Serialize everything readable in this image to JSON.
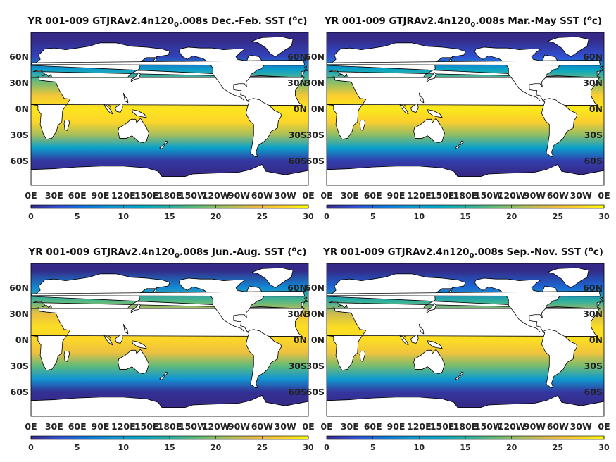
{
  "chart_data": [
    {
      "type": "heatmap",
      "title": {
        "prefix": "YR 001-009 GTJRAv2.4n120",
        "subscript": "0",
        "suffix": ".008s Dec.-Feb. SST (",
        "unit_sup": "o",
        "unit_after": "c)"
      },
      "season": "Dec.-Feb.",
      "x_ticks": [
        "0E",
        "30E",
        "60E",
        "90E",
        "120E",
        "150E",
        "180E",
        "150W",
        "120W",
        "90W",
        "60W",
        "30W",
        "0E"
      ],
      "y_ticks": [
        "60N",
        "30N",
        "0N",
        "30S",
        "60S"
      ],
      "colorbar": {
        "ticks": [
          "0",
          "5",
          "10",
          "15",
          "20",
          "25",
          "30"
        ],
        "range": [
          0,
          30
        ],
        "colormap": "parula"
      },
      "sst_by_latitude": [
        [
          80,
          -1
        ],
        [
          60,
          2
        ],
        [
          45,
          11
        ],
        [
          30,
          19
        ],
        [
          15,
          26
        ],
        [
          0,
          28.5
        ],
        [
          -15,
          27.5
        ],
        [
          -30,
          21
        ],
        [
          -45,
          11
        ],
        [
          -60,
          1
        ],
        [
          -75,
          -1
        ]
      ]
    },
    {
      "type": "heatmap",
      "title": {
        "prefix": "YR 001-009 GTJRAv2.4n120",
        "subscript": "0",
        "suffix": ".008s Mar.-May SST (",
        "unit_sup": "o",
        "unit_after": "c)"
      },
      "season": "Mar.-May",
      "x_ticks": [
        "0E",
        "30E",
        "60E",
        "90E",
        "120E",
        "150E",
        "180E",
        "150W",
        "120W",
        "90W",
        "60W",
        "30W",
        "0E"
      ],
      "y_ticks": [
        "60N",
        "30N",
        "0N",
        "30S",
        "60S"
      ],
      "colorbar": {
        "ticks": [
          "0",
          "5",
          "10",
          "15",
          "20",
          "25",
          "30"
        ],
        "range": [
          0,
          30
        ],
        "colormap": "parula"
      },
      "sst_by_latitude": [
        [
          80,
          -1
        ],
        [
          60,
          3
        ],
        [
          45,
          12
        ],
        [
          30,
          20
        ],
        [
          15,
          27
        ],
        [
          0,
          28.8
        ],
        [
          -15,
          27
        ],
        [
          -30,
          20
        ],
        [
          -45,
          11
        ],
        [
          -60,
          1.5
        ],
        [
          -75,
          -1
        ]
      ]
    },
    {
      "type": "heatmap",
      "title": {
        "prefix": "YR 001-009 GTJRAv2.4n120",
        "subscript": "0",
        "suffix": ".008s Jun.-Aug. SST (",
        "unit_sup": "o",
        "unit_after": "c)"
      },
      "season": "Jun.-Aug.",
      "x_ticks": [
        "0E",
        "30E",
        "60E",
        "90E",
        "120E",
        "150E",
        "180E",
        "150W",
        "120W",
        "90W",
        "60W",
        "30W",
        "0E"
      ],
      "y_ticks": [
        "60N",
        "30N",
        "0N",
        "30S",
        "60S"
      ],
      "colorbar": {
        "ticks": [
          "0",
          "5",
          "10",
          "15",
          "20",
          "25",
          "30"
        ],
        "range": [
          0,
          30
        ],
        "colormap": "parula"
      },
      "sst_by_latitude": [
        [
          80,
          0
        ],
        [
          60,
          8
        ],
        [
          45,
          17
        ],
        [
          30,
          25
        ],
        [
          15,
          28
        ],
        [
          0,
          27.5
        ],
        [
          -15,
          25
        ],
        [
          -30,
          18
        ],
        [
          -45,
          9
        ],
        [
          -60,
          0.5
        ],
        [
          -75,
          -1.5
        ]
      ]
    },
    {
      "type": "heatmap",
      "title": {
        "prefix": "YR 001-009 GTJRAv2.4n120",
        "subscript": "0",
        "suffix": ".008s Sep.-Nov. SST (",
        "unit_sup": "o",
        "unit_after": "c)"
      },
      "season": "Sep.-Nov.",
      "x_ticks": [
        "0E",
        "30E",
        "60E",
        "90E",
        "120E",
        "150E",
        "180E",
        "150W",
        "120W",
        "90W",
        "60W",
        "30W",
        "0E"
      ],
      "y_ticks": [
        "60N",
        "30N",
        "0N",
        "30S",
        "60S"
      ],
      "colorbar": {
        "ticks": [
          "0",
          "5",
          "10",
          "15",
          "20",
          "25",
          "30"
        ],
        "range": [
          0,
          30
        ],
        "colormap": "parula"
      },
      "sst_by_latitude": [
        [
          80,
          -0.5
        ],
        [
          60,
          5
        ],
        [
          45,
          15
        ],
        [
          30,
          23
        ],
        [
          15,
          28
        ],
        [
          0,
          28
        ],
        [
          -15,
          25.5
        ],
        [
          -30,
          19
        ],
        [
          -45,
          10
        ],
        [
          -60,
          1
        ],
        [
          -75,
          -1.2
        ]
      ]
    }
  ],
  "colors": {
    "land": "#ffffff",
    "coastline": "#000000",
    "parula": [
      "#352a87",
      "#3150d3",
      "#0f77db",
      "#1295d4",
      "#06a6c6",
      "#2ab0a0",
      "#5fbb7a",
      "#a5be5c",
      "#e3b94a",
      "#fcce2e",
      "#f9fb0e"
    ]
  }
}
